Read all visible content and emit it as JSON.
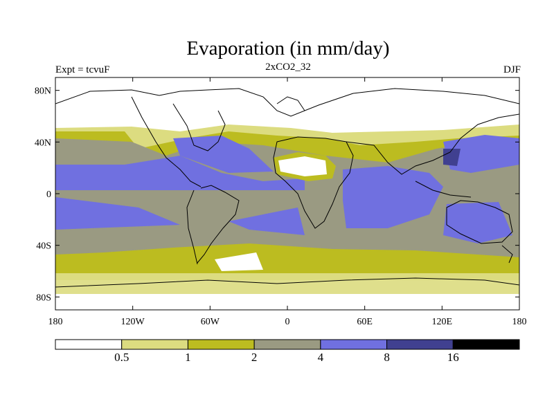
{
  "title": "Evaporation (in mm/day)",
  "experiment_label": "Expt = tcvuF",
  "subtitle": "2xCO2_32",
  "season": "DJF",
  "lat_ticks": [
    {
      "value": 80,
      "label": "80N"
    },
    {
      "value": 40,
      "label": "40N"
    },
    {
      "value": 0,
      "label": "0"
    },
    {
      "value": -40,
      "label": "40S"
    },
    {
      "value": -80,
      "label": "80S"
    }
  ],
  "lon_ticks": [
    {
      "value": -180,
      "label": "180"
    },
    {
      "value": -120,
      "label": "120W"
    },
    {
      "value": -60,
      "label": "60W"
    },
    {
      "value": 0,
      "label": "0"
    },
    {
      "value": 60,
      "label": "60E"
    },
    {
      "value": 120,
      "label": "120E"
    },
    {
      "value": 180,
      "label": "180"
    }
  ],
  "colorbar": {
    "levels": [
      "0.5",
      "1",
      "2",
      "4",
      "8",
      "16"
    ],
    "colors": [
      "#ffffff",
      "#dcdc80",
      "#bcbc20",
      "#9a9a82",
      "#7070e0",
      "#404090",
      "#000000"
    ]
  }
}
